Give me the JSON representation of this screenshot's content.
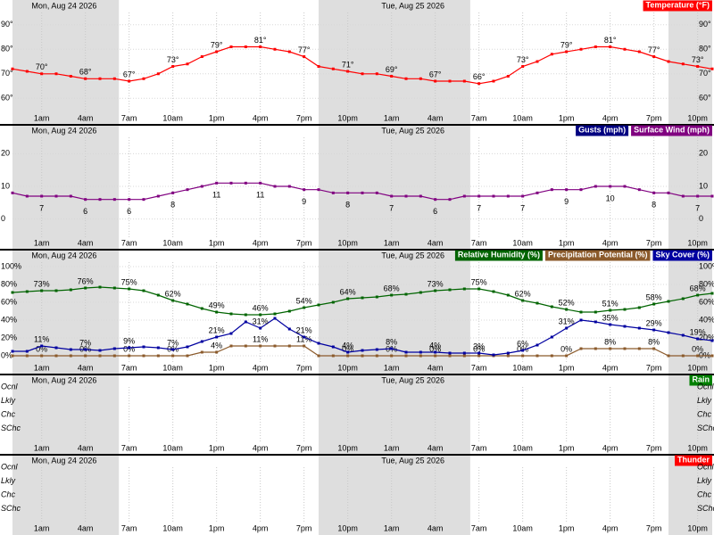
{
  "x_axis": {
    "xlim": [
      -1,
      47
    ],
    "xticks": [
      {
        "value": 1,
        "label": "1am"
      },
      {
        "value": 4,
        "label": "4am"
      },
      {
        "value": 7,
        "label": "7am"
      },
      {
        "value": 10,
        "label": "10am"
      },
      {
        "value": 13,
        "label": "1pm"
      },
      {
        "value": 16,
        "label": "4pm"
      },
      {
        "value": 19,
        "label": "7pm"
      },
      {
        "value": 22,
        "label": "10pm"
      },
      {
        "value": 25,
        "label": "1am"
      },
      {
        "value": 28,
        "label": "4am"
      },
      {
        "value": 31,
        "label": "7am"
      },
      {
        "value": 34,
        "label": "10am"
      },
      {
        "value": 37,
        "label": "1pm"
      },
      {
        "value": 40,
        "label": "4pm"
      },
      {
        "value": 43,
        "label": "7pm"
      },
      {
        "value": 46,
        "label": "10pm"
      }
    ],
    "days": [
      "Mon, Aug 24 2026",
      "Tue, Aug 25 2026"
    ],
    "shaded_hours": [
      [
        -1,
        6.3
      ],
      [
        20,
        30.4
      ],
      [
        44,
        47
      ]
    ],
    "x": [
      -1,
      0,
      1,
      2,
      3,
      4,
      5,
      6,
      7,
      8,
      9,
      10,
      11,
      12,
      13,
      14,
      15,
      16,
      17,
      18,
      19,
      20,
      21,
      22,
      23,
      24,
      25,
      26,
      27,
      28,
      29,
      30,
      31,
      32,
      33,
      34,
      35,
      36,
      37,
      38,
      39,
      40,
      41,
      42,
      43,
      44,
      45,
      46,
      47
    ]
  },
  "chart_data": [
    {
      "type": "line",
      "ylim": [
        55,
        95
      ],
      "yticks": [
        {
          "value": 90,
          "label": "90°"
        },
        {
          "value": 80,
          "label": "80°"
        },
        {
          "value": 70,
          "label": "70°"
        },
        {
          "value": 60,
          "label": "60°"
        }
      ],
      "series": [
        {
          "name": "Temperature (°F)",
          "color": "#ff0000",
          "values": [
            72,
            71,
            70,
            70,
            69,
            68,
            68,
            68,
            67,
            68,
            70,
            73,
            74,
            77,
            79,
            81,
            81,
            81,
            80,
            79,
            77,
            73,
            72,
            71,
            70,
            70,
            69,
            68,
            68,
            67,
            67,
            67,
            66,
            67,
            69,
            73,
            75,
            78,
            79,
            80,
            81,
            81,
            80,
            79,
            77,
            75,
            74,
            73,
            72
          ],
          "value_labels": [
            null,
            null,
            "70°",
            null,
            null,
            "68°",
            null,
            null,
            "67°",
            null,
            null,
            "73°",
            null,
            null,
            "79°",
            null,
            null,
            "81°",
            null,
            null,
            "77°",
            null,
            null,
            "71°",
            null,
            null,
            "69°",
            null,
            null,
            "67°",
            null,
            null,
            "66°",
            null,
            null,
            "73°",
            null,
            null,
            "79°",
            null,
            null,
            "81°",
            null,
            null,
            "77°",
            null,
            null,
            "73°",
            null
          ]
        }
      ]
    },
    {
      "type": "line",
      "ylim": [
        -5,
        25
      ],
      "yticks": [
        20,
        10,
        0
      ],
      "series": [
        {
          "name": "Gusts (mph)",
          "color": "#000080",
          "values": [
            null,
            null,
            null,
            null,
            null,
            null,
            null,
            null,
            null,
            null,
            null,
            null,
            null,
            null,
            null,
            null,
            null,
            null,
            null,
            null,
            null,
            null,
            null,
            null,
            null,
            null,
            null,
            null,
            null,
            null,
            null,
            null,
            null,
            null,
            null,
            null,
            null,
            null,
            null,
            null,
            null,
            null,
            null,
            null,
            null,
            null,
            null,
            null,
            null
          ]
        },
        {
          "name": "Surface Wind (mph)",
          "color": "#800080",
          "values": [
            8,
            7,
            7,
            7,
            7,
            6,
            6,
            6,
            6,
            6,
            7,
            8,
            9,
            10,
            11,
            11,
            11,
            11,
            10,
            10,
            9,
            9,
            8,
            8,
            8,
            8,
            7,
            7,
            7,
            6,
            6,
            7,
            7,
            7,
            7,
            7,
            8,
            9,
            9,
            9,
            10,
            10,
            10,
            9,
            8,
            8,
            7,
            7,
            7
          ]
        }
      ]
    },
    {
      "type": "line",
      "ylim": [
        -5,
        105
      ],
      "yticks": [
        {
          "value": 100,
          "label": "100%"
        },
        {
          "value": 80,
          "label": "80%"
        },
        {
          "value": 60,
          "label": "60%"
        },
        {
          "value": 40,
          "label": "40%"
        },
        {
          "value": 20,
          "label": "20%"
        },
        {
          "value": 0,
          "label": "0%"
        }
      ],
      "series": [
        {
          "name": "Relative Humidity (%)",
          "color": "#006400",
          "values": [
            71,
            72,
            73,
            73,
            74,
            76,
            77,
            76,
            75,
            73,
            68,
            62,
            58,
            53,
            49,
            47,
            46,
            46,
            47,
            50,
            54,
            57,
            60,
            64,
            65,
            66,
            68,
            69,
            71,
            73,
            74,
            75,
            75,
            72,
            68,
            62,
            59,
            55,
            52,
            49,
            49,
            51,
            52,
            54,
            58,
            61,
            64,
            68,
            70
          ],
          "value_labels": [
            null,
            null,
            "73%",
            null,
            null,
            "76%",
            null,
            null,
            "75%",
            null,
            null,
            "62%",
            null,
            null,
            "49%",
            null,
            null,
            "46%",
            null,
            null,
            "54%",
            null,
            null,
            "64%",
            null,
            null,
            "68%",
            null,
            null,
            "73%",
            null,
            null,
            "75%",
            null,
            null,
            "62%",
            null,
            null,
            "52%",
            null,
            null,
            "51%",
            null,
            null,
            "58%",
            null,
            null,
            "68%",
            null
          ]
        },
        {
          "name": "Precipitation Potential (%)",
          "color": "#8b5a2b",
          "values": [
            0,
            0,
            0,
            0,
            0,
            0,
            0,
            0,
            0,
            0,
            0,
            0,
            0,
            4,
            4,
            11,
            11,
            11,
            11,
            11,
            11,
            0,
            0,
            0,
            0,
            0,
            0,
            0,
            0,
            0,
            0,
            0,
            0,
            0,
            0,
            0,
            0,
            0,
            0,
            8,
            8,
            8,
            8,
            8,
            8,
            0,
            0,
            0,
            0
          ],
          "value_labels": [
            null,
            null,
            "0%",
            null,
            null,
            "0%",
            null,
            null,
            "0%",
            null,
            null,
            "0%",
            null,
            null,
            "4%",
            null,
            null,
            "11%",
            null,
            null,
            "11%",
            null,
            null,
            "0%",
            null,
            null,
            "0%",
            null,
            null,
            "0%",
            null,
            null,
            "0%",
            null,
            null,
            "0%",
            null,
            null,
            "0%",
            null,
            null,
            "8%",
            null,
            null,
            "8%",
            null,
            null,
            "0%",
            null
          ]
        },
        {
          "name": "Sky Cover (%)",
          "color": "#0000a0",
          "values": [
            5,
            5,
            11,
            9,
            7,
            7,
            6,
            8,
            9,
            10,
            9,
            7,
            10,
            16,
            21,
            25,
            38,
            31,
            42,
            30,
            21,
            14,
            10,
            4,
            6,
            7,
            8,
            4,
            4,
            4,
            3,
            3,
            3,
            1,
            3,
            6,
            12,
            21,
            31,
            40,
            38,
            35,
            33,
            31,
            29,
            26,
            23,
            19,
            17
          ],
          "value_labels": [
            null,
            null,
            "11%",
            null,
            null,
            "7%",
            null,
            null,
            "9%",
            null,
            null,
            "7%",
            null,
            null,
            "21%",
            null,
            null,
            "31%",
            null,
            null,
            "21%",
            null,
            null,
            "4%",
            null,
            null,
            "8%",
            null,
            null,
            "4%",
            null,
            null,
            "3%",
            null,
            null,
            "6%",
            null,
            null,
            "31%",
            null,
            null,
            "35%",
            null,
            null,
            "29%",
            null,
            null,
            "19%",
            null
          ]
        }
      ]
    },
    {
      "type": "category",
      "title": "Rain",
      "color": "#008000",
      "yticks": [
        "Ocnl",
        "Lkly",
        "Chc",
        "SChc"
      ]
    },
    {
      "type": "category",
      "title": "Thunder",
      "color": "#ff0000",
      "yticks": [
        "Ocnl",
        "Lkly",
        "Chc",
        "SChc"
      ]
    }
  ]
}
